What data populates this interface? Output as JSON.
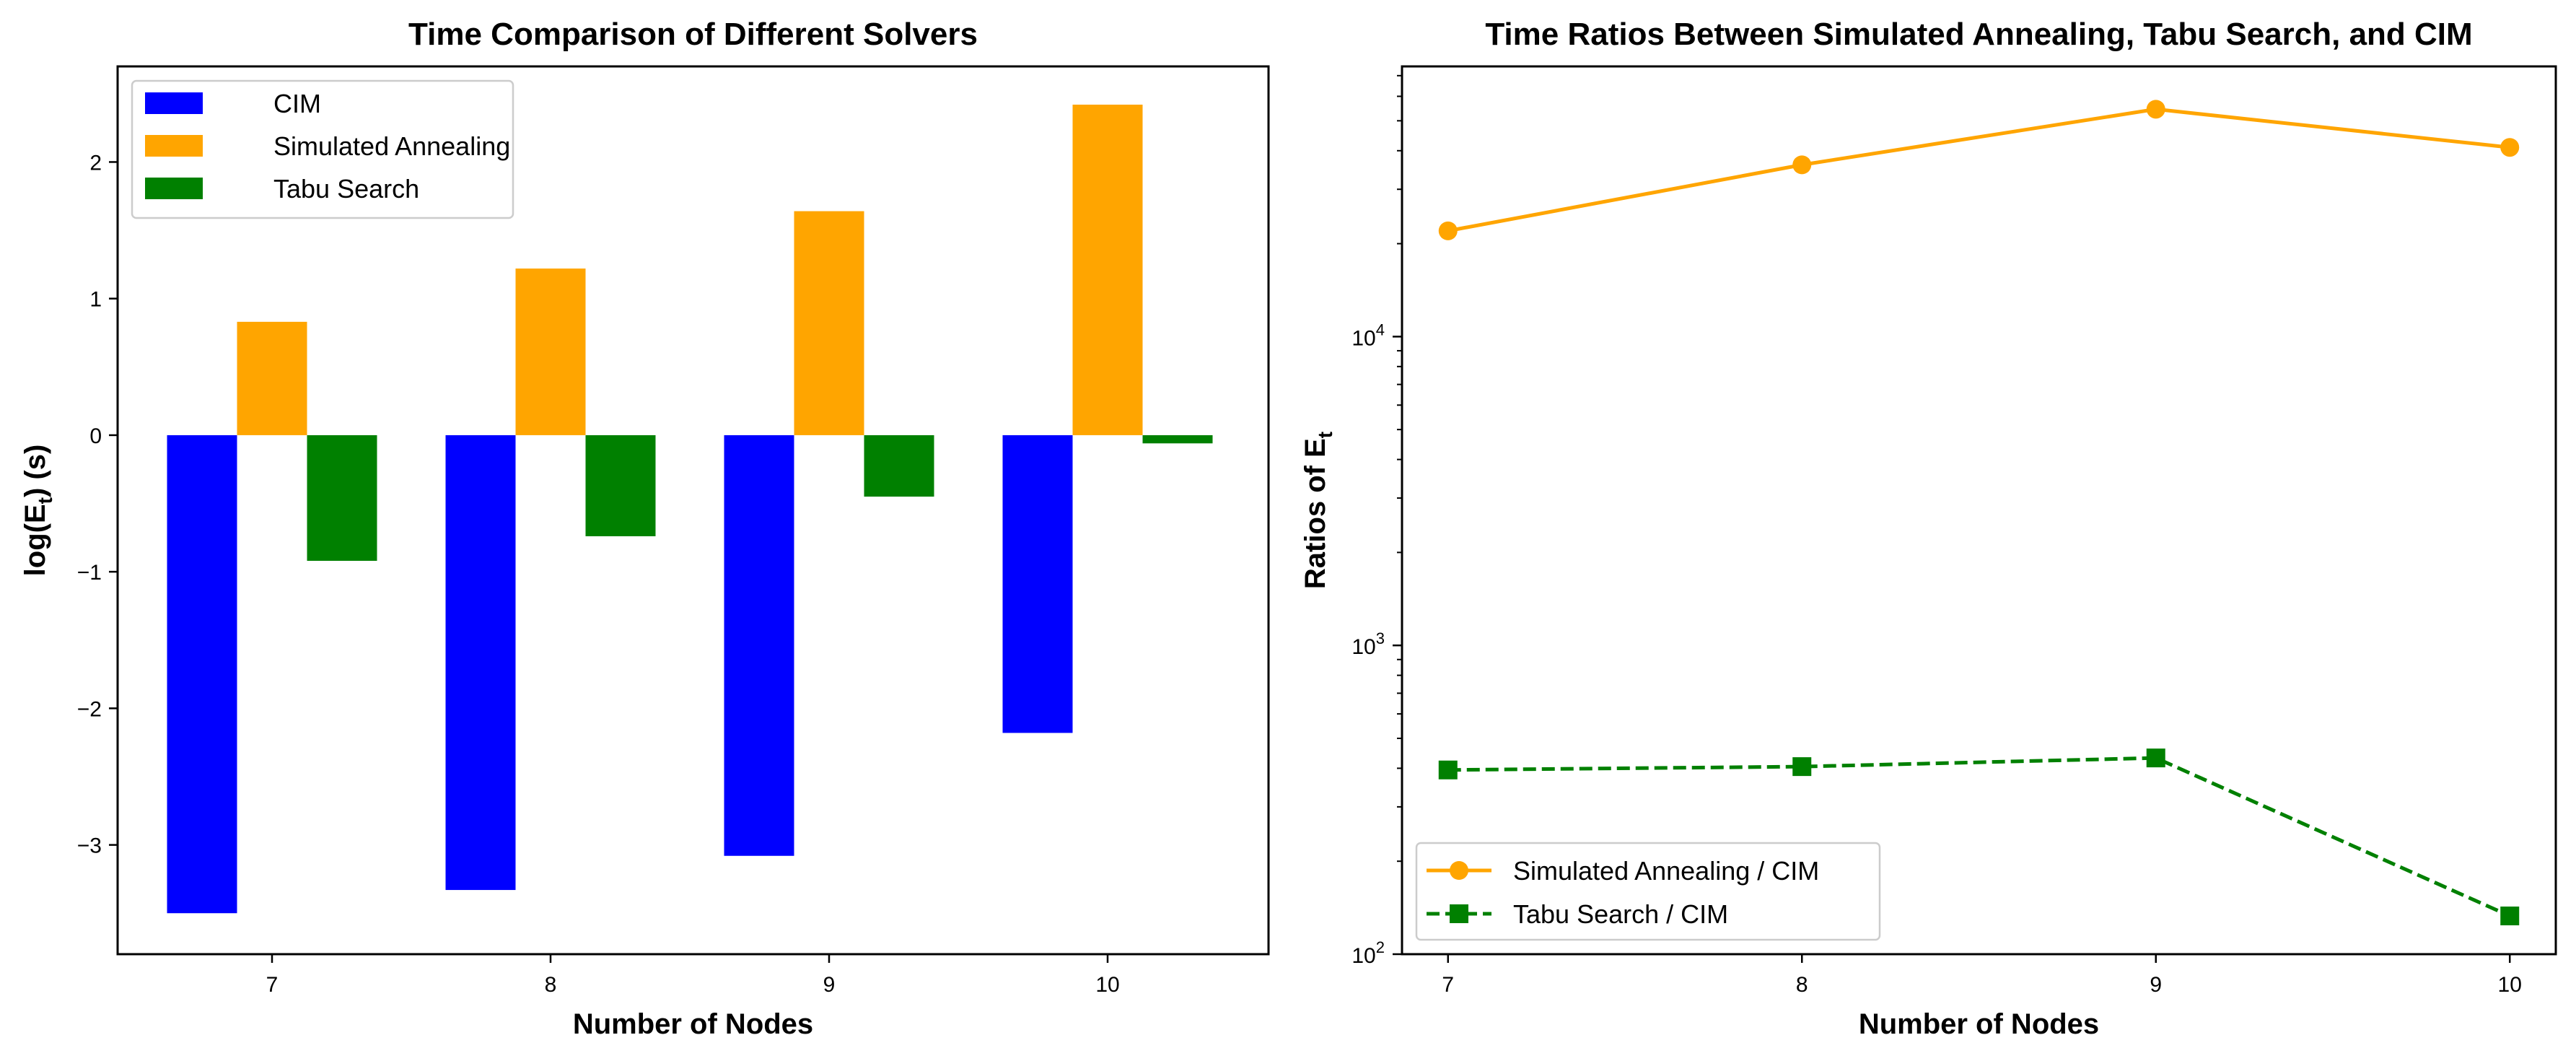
{
  "colors": {
    "cim": "#0000ff",
    "sa": "#ffa500",
    "tabu": "#008000"
  },
  "chart_data": [
    {
      "type": "bar",
      "title": "Time Comparison of Different Solvers",
      "xlabel": "Number of Nodes",
      "ylabel": "log(E",
      "ylabel_sub": "t",
      "ylabel_suffix": ")  (s)",
      "categories": [
        "7",
        "8",
        "9",
        "10"
      ],
      "ylim": [
        -3.8,
        2.7
      ],
      "yticks": [
        2,
        1,
        0,
        -1,
        -2,
        -3
      ],
      "ytick_labels": [
        "2",
        "1",
        "0",
        "−1",
        "−2",
        "−3"
      ],
      "legend_position": "upper-left",
      "series": [
        {
          "name": "CIM",
          "color": "#0000ff",
          "values": [
            -3.5,
            -3.33,
            -3.08,
            -2.18
          ]
        },
        {
          "name": "Simulated Annealing",
          "color": "#ffa500",
          "values": [
            0.83,
            1.22,
            1.64,
            2.42
          ]
        },
        {
          "name": "Tabu Search",
          "color": "#008000",
          "values": [
            -0.92,
            -0.74,
            -0.45,
            -0.06
          ]
        }
      ]
    },
    {
      "type": "line",
      "title": "Time Ratios Between Simulated Annealing, Tabu Search, and CIM",
      "xlabel": "Number of Nodes",
      "ylabel": "Ratios of E",
      "ylabel_sub": "t",
      "yscale": "log",
      "x": [
        7,
        8,
        9,
        10
      ],
      "xtick_labels": [
        "7",
        "8",
        "9",
        "10"
      ],
      "ylim": [
        100,
        75000
      ],
      "yticks": [
        {
          "value": 10000,
          "base": "10",
          "exp": "4"
        },
        {
          "value": 1000,
          "base": "10",
          "exp": "3"
        },
        {
          "value": 100,
          "base": "10",
          "exp": "2"
        }
      ],
      "legend_position": "lower-left",
      "series": [
        {
          "name": "Simulated Annealing / CIM",
          "color": "#ffa500",
          "marker": "circle",
          "linestyle": "solid",
          "values": [
            22000,
            36000,
            54500,
            41000
          ]
        },
        {
          "name": "Tabu Search / CIM",
          "color": "#008000",
          "marker": "square",
          "linestyle": "dashed",
          "values": [
            395,
            405,
            432,
            133
          ]
        }
      ]
    }
  ]
}
